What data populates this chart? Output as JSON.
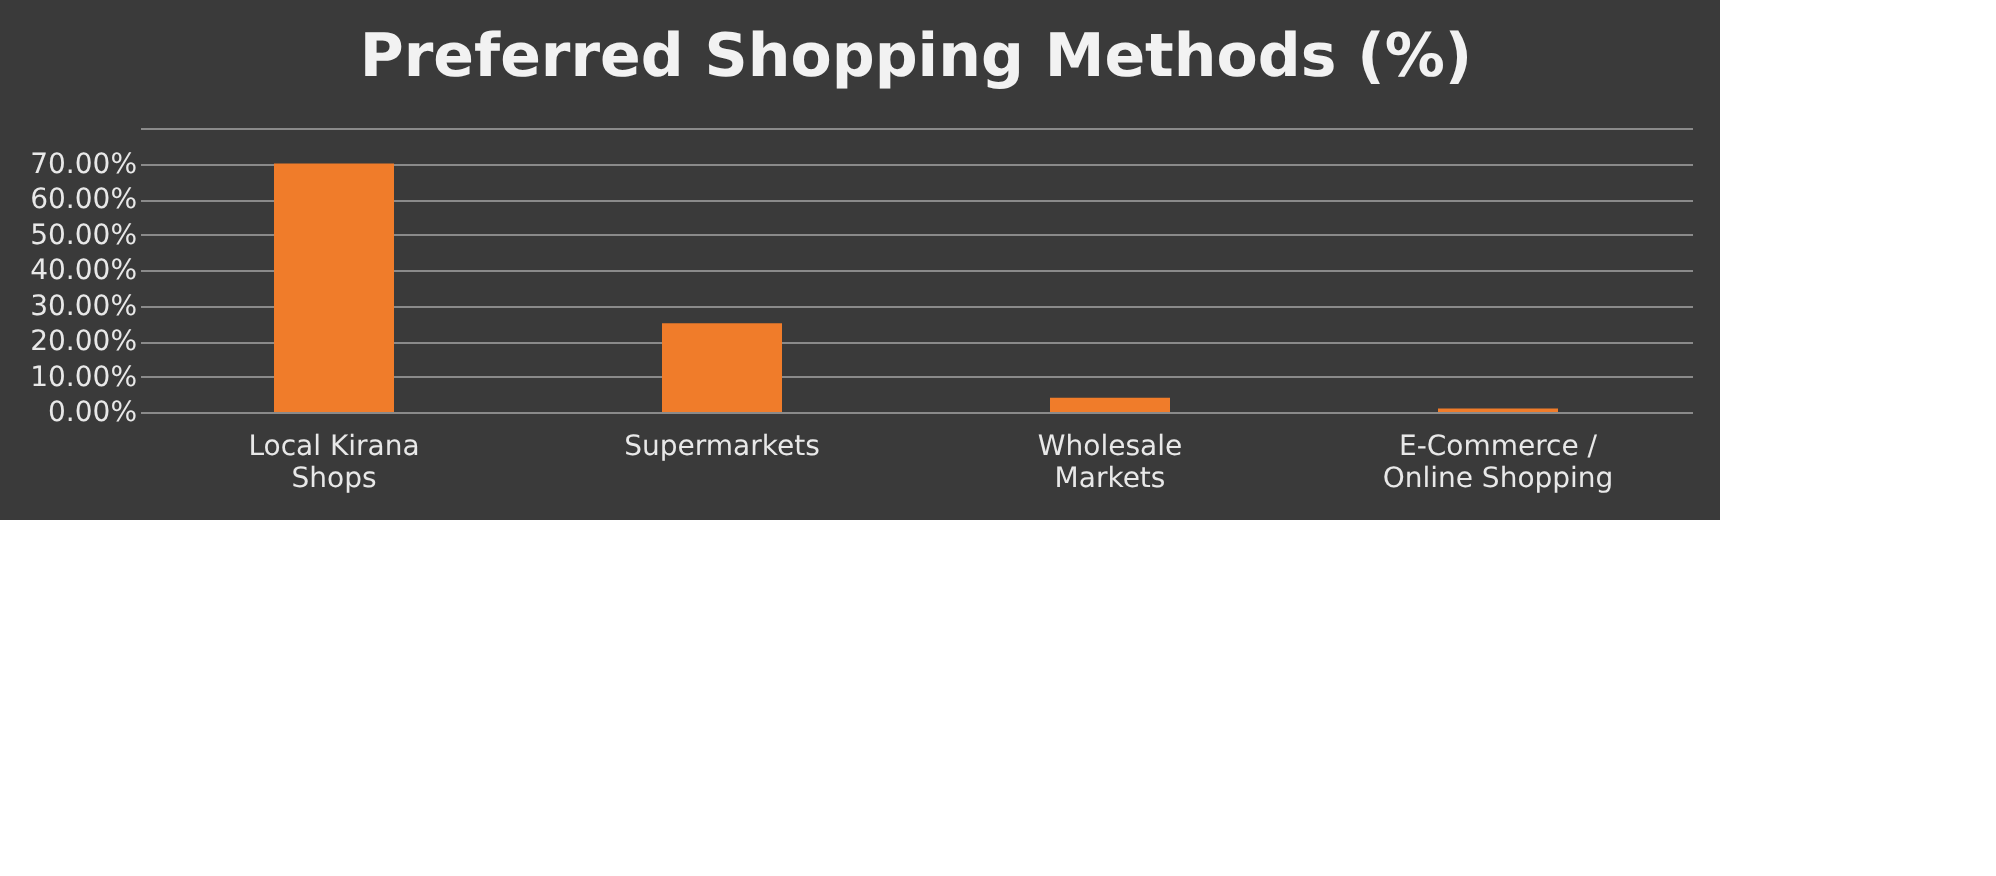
{
  "chart_data": {
    "type": "bar",
    "title": "Preferred Shopping Methods (%)",
    "categories": [
      "Local Kirana Shops",
      "Supermarkets",
      "Wholesale Markets",
      "E-Commerce / Online Shopping"
    ],
    "values": [
      70,
      25,
      4,
      1
    ],
    "color": "#f07c2a",
    "ylim": [
      0,
      80
    ],
    "yticks": [
      {
        "value": 0,
        "label": "0.00%"
      },
      {
        "value": 10,
        "label": "10.00%"
      },
      {
        "value": 20,
        "label": "20.00%"
      },
      {
        "value": 30,
        "label": "30.00%"
      },
      {
        "value": 40,
        "label": "40.00%"
      },
      {
        "value": 50,
        "label": "50.00%"
      },
      {
        "value": 60,
        "label": "60.00%"
      },
      {
        "value": 70,
        "label": "70.00%"
      },
      {
        "value": 80,
        "label": null
      }
    ],
    "grid": "y"
  }
}
